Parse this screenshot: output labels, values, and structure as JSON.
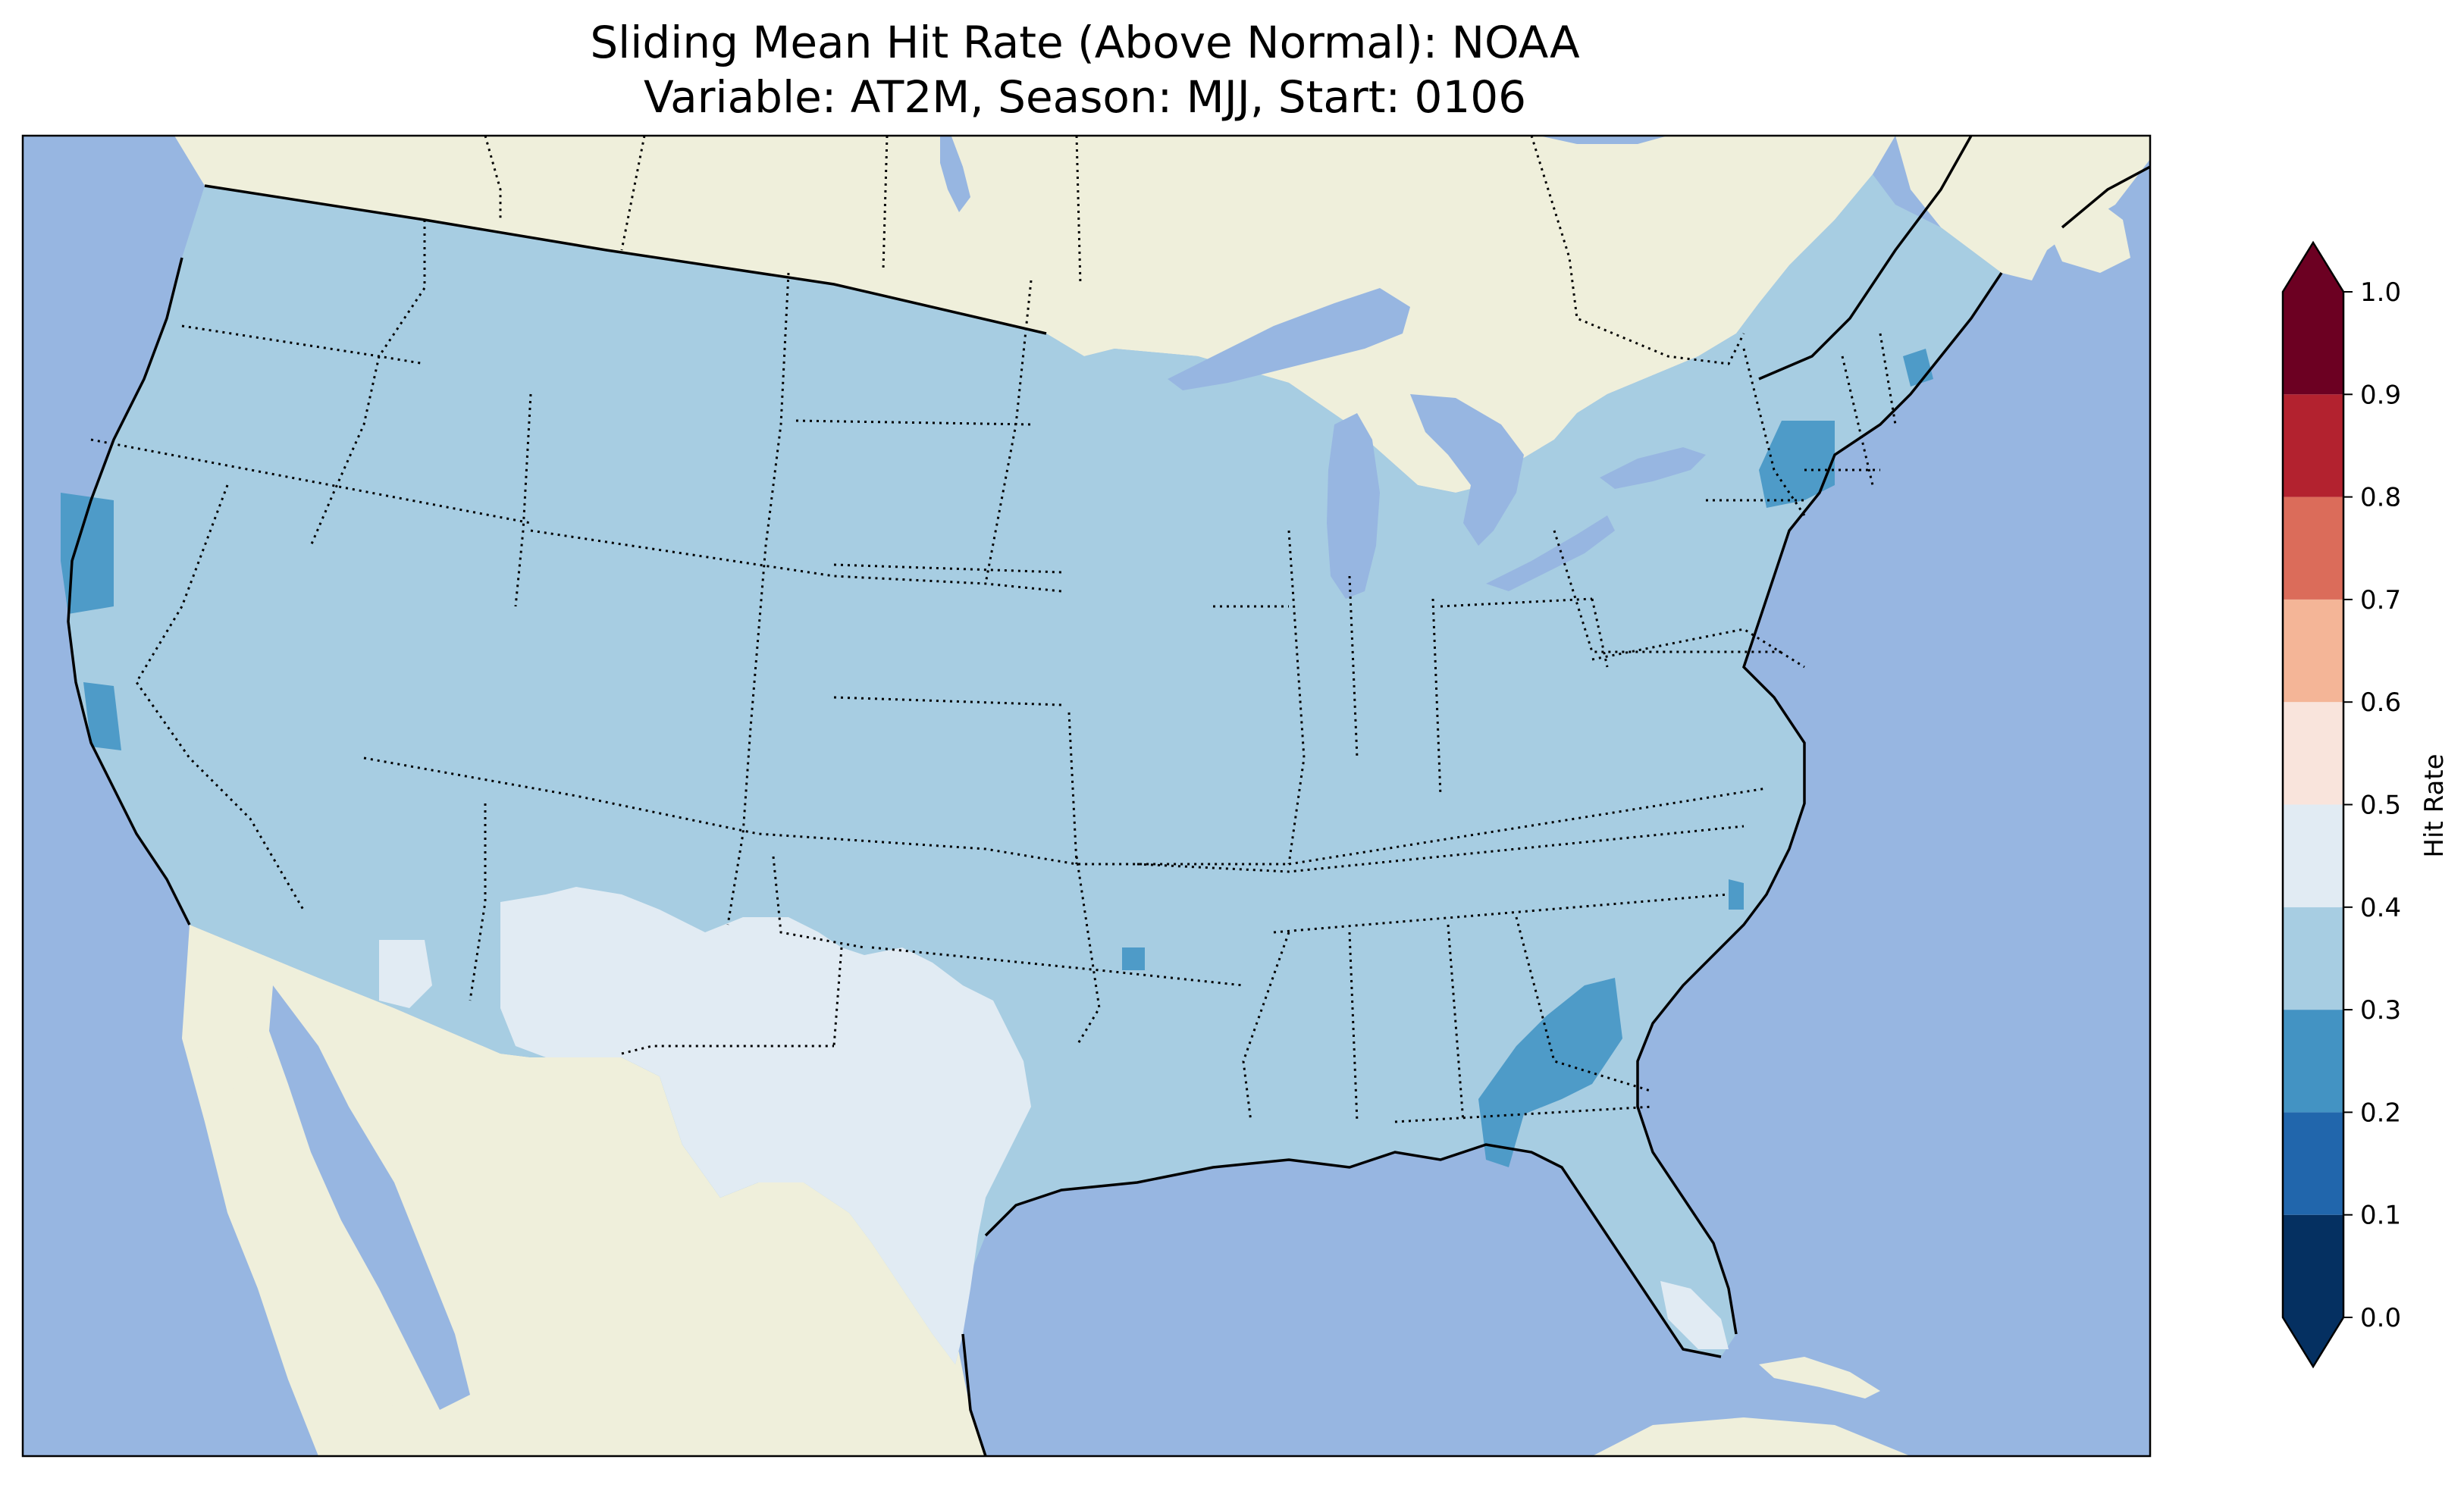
{
  "title_line1": "Sliding Mean Hit Rate (Above Normal): NOAA",
  "title_line2": "Variable: AT2M, Season: MJJ, Start: 0106",
  "colors": {
    "ocean": "#97b6e1",
    "land": "#efefdb",
    "base_fill": "#a7cde2",
    "light_fill": "#e1ebf3",
    "mid_fill": "#4e9bc8",
    "lake": "#97b6e1"
  },
  "colorbar": {
    "label": "Hit Rate",
    "ticks": [
      "0.0",
      "0.1",
      "0.2",
      "0.3",
      "0.4",
      "0.5",
      "0.6",
      "0.7",
      "0.8",
      "0.9",
      "1.0"
    ],
    "bins": [
      {
        "from": 0.0,
        "to": 0.1,
        "color": "#053061"
      },
      {
        "from": 0.1,
        "to": 0.2,
        "color": "#2166ac"
      },
      {
        "from": 0.2,
        "to": 0.3,
        "color": "#4393c3"
      },
      {
        "from": 0.3,
        "to": 0.4,
        "color": "#a7cde2"
      },
      {
        "from": 0.4,
        "to": 0.5,
        "color": "#e1ebf3"
      },
      {
        "from": 0.5,
        "to": 0.6,
        "color": "#f9e4dc"
      },
      {
        "from": 0.6,
        "to": 0.7,
        "color": "#f4b597"
      },
      {
        "from": 0.7,
        "to": 0.8,
        "color": "#db6c5a"
      },
      {
        "from": 0.8,
        "to": 0.9,
        "color": "#b3222f"
      },
      {
        "from": 0.9,
        "to": 1.0,
        "color": "#6c0022"
      }
    ],
    "under_color": "#053061",
    "over_color": "#6c0022"
  }
}
